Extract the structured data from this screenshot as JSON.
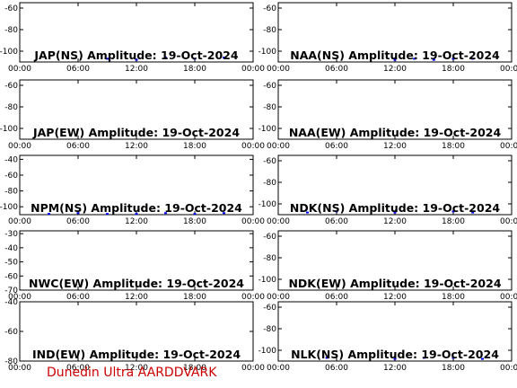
{
  "footer_label": "Dunedin Ultra AARDDVARK",
  "colors": {
    "trace": "#0000ff",
    "axes": "#000000",
    "footer": "#cc0000"
  },
  "chart_data": [
    {
      "type": "line",
      "title": "JAP(NS) Amplitude: 19-Oct-2024",
      "ylim": [
        -110,
        -55
      ],
      "yticks": [
        -60,
        -80,
        -100
      ],
      "xticks": [
        "00:00",
        "06:00",
        "12:00",
        "18:00",
        "00:00"
      ],
      "xlim_hours": [
        0,
        24
      ],
      "series": [
        {
          "x": [
            9,
            12,
            15,
            18,
            21
          ],
          "y": [
            -107,
            -108,
            -106,
            -107,
            -106
          ]
        }
      ]
    },
    {
      "type": "line",
      "title": "NAA(NS) Amplitude: 19-Oct-2024",
      "ylim": [
        -110,
        -55
      ],
      "yticks": [
        -60,
        -80,
        -100
      ],
      "xticks": [
        "00:00",
        "06:00",
        "12:00",
        "18:00",
        "00:00"
      ],
      "xlim_hours": [
        0,
        24
      ],
      "series": [
        {
          "x": [
            12,
            14,
            16,
            18,
            20
          ],
          "y": [
            -108,
            -107,
            -108,
            -107,
            -107
          ]
        }
      ]
    },
    {
      "type": "line",
      "title": "JAP(EW) Amplitude: 19-Oct-2024",
      "ylim": [
        -110,
        -55
      ],
      "yticks": [
        -60,
        -80,
        -100
      ],
      "xticks": [
        "00:00",
        "06:00",
        "12:00",
        "18:00",
        "00:00"
      ],
      "xlim_hours": [
        0,
        24
      ],
      "series": []
    },
    {
      "type": "line",
      "title": "NAA(EW) Amplitude: 19-Oct-2024",
      "ylim": [
        -110,
        -55
      ],
      "yticks": [
        -60,
        -80,
        -100
      ],
      "xticks": [
        "00:00",
        "06:00",
        "12:00",
        "18:00",
        "00:00"
      ],
      "xlim_hours": [
        0,
        24
      ],
      "series": []
    },
    {
      "type": "line",
      "title": "NPM(NS) Amplitude: 19-Oct-2024",
      "ylim": [
        -110,
        -35
      ],
      "yticks": [
        -40,
        -60,
        -80,
        -100
      ],
      "xticks": [
        "00:00",
        "06:00",
        "12:00",
        "18:00",
        "00:00"
      ],
      "xlim_hours": [
        0,
        24
      ],
      "series": [
        {
          "x": [
            3,
            6,
            9,
            12,
            15,
            18,
            21
          ],
          "y": [
            -109,
            -108,
            -109,
            -109,
            -108,
            -109,
            -108
          ]
        }
      ]
    },
    {
      "type": "line",
      "title": "NDK(NS) Amplitude: 19-Oct-2024",
      "ylim": [
        -110,
        -55
      ],
      "yticks": [
        -60,
        -80,
        -100
      ],
      "xticks": [
        "00:00",
        "06:00",
        "12:00",
        "18:00",
        "00:00"
      ],
      "xlim_hours": [
        0,
        24
      ],
      "series": [
        {
          "x": [
            3,
            6,
            12,
            18,
            20
          ],
          "y": [
            -108,
            -107,
            -108,
            -107,
            -108
          ]
        }
      ]
    },
    {
      "type": "line",
      "title": "NWC(EW) Amplitude: 19-Oct-2024",
      "ylim": [
        -70,
        -28
      ],
      "yticks": [
        -30,
        -40,
        -50,
        -60,
        -70
      ],
      "xticks": [
        "00:00",
        "06:00",
        "12:00",
        "18:00",
        "00:00"
      ],
      "xlim_hours": [
        0,
        24
      ],
      "series": []
    },
    {
      "type": "line",
      "title": "NDK(EW) Amplitude: 19-Oct-2024",
      "ylim": [
        -110,
        -55
      ],
      "yticks": [
        -60,
        -80,
        -100
      ],
      "xticks": [
        "00:00",
        "06:00",
        "12:00",
        "18:00",
        "00:00"
      ],
      "xlim_hours": [
        0,
        24
      ],
      "series": []
    },
    {
      "type": "line",
      "title": "IND(EW) Amplitude: 19-Oct-2024",
      "ylim": [
        -80,
        -40
      ],
      "yticks": [
        -40,
        -60,
        -80
      ],
      "xticks": [
        "00:00",
        "06:00",
        "12:00",
        "18:00",
        "00:00"
      ],
      "xlim_hours": [
        0,
        24
      ],
      "series": []
    },
    {
      "type": "line",
      "title": "NLK(NS) Amplitude: 19-Oct-2024",
      "ylim": [
        -110,
        -55
      ],
      "yticks": [
        -60,
        -80,
        -100
      ],
      "xticks": [
        "00:00",
        "06:00",
        "12:00",
        "18:00",
        "00:00"
      ],
      "xlim_hours": [
        0,
        24
      ],
      "series": [
        {
          "x": [
            5,
            12,
            15,
            18,
            21
          ],
          "y": [
            -107,
            -108,
            -107,
            -107,
            -108
          ]
        }
      ]
    }
  ]
}
